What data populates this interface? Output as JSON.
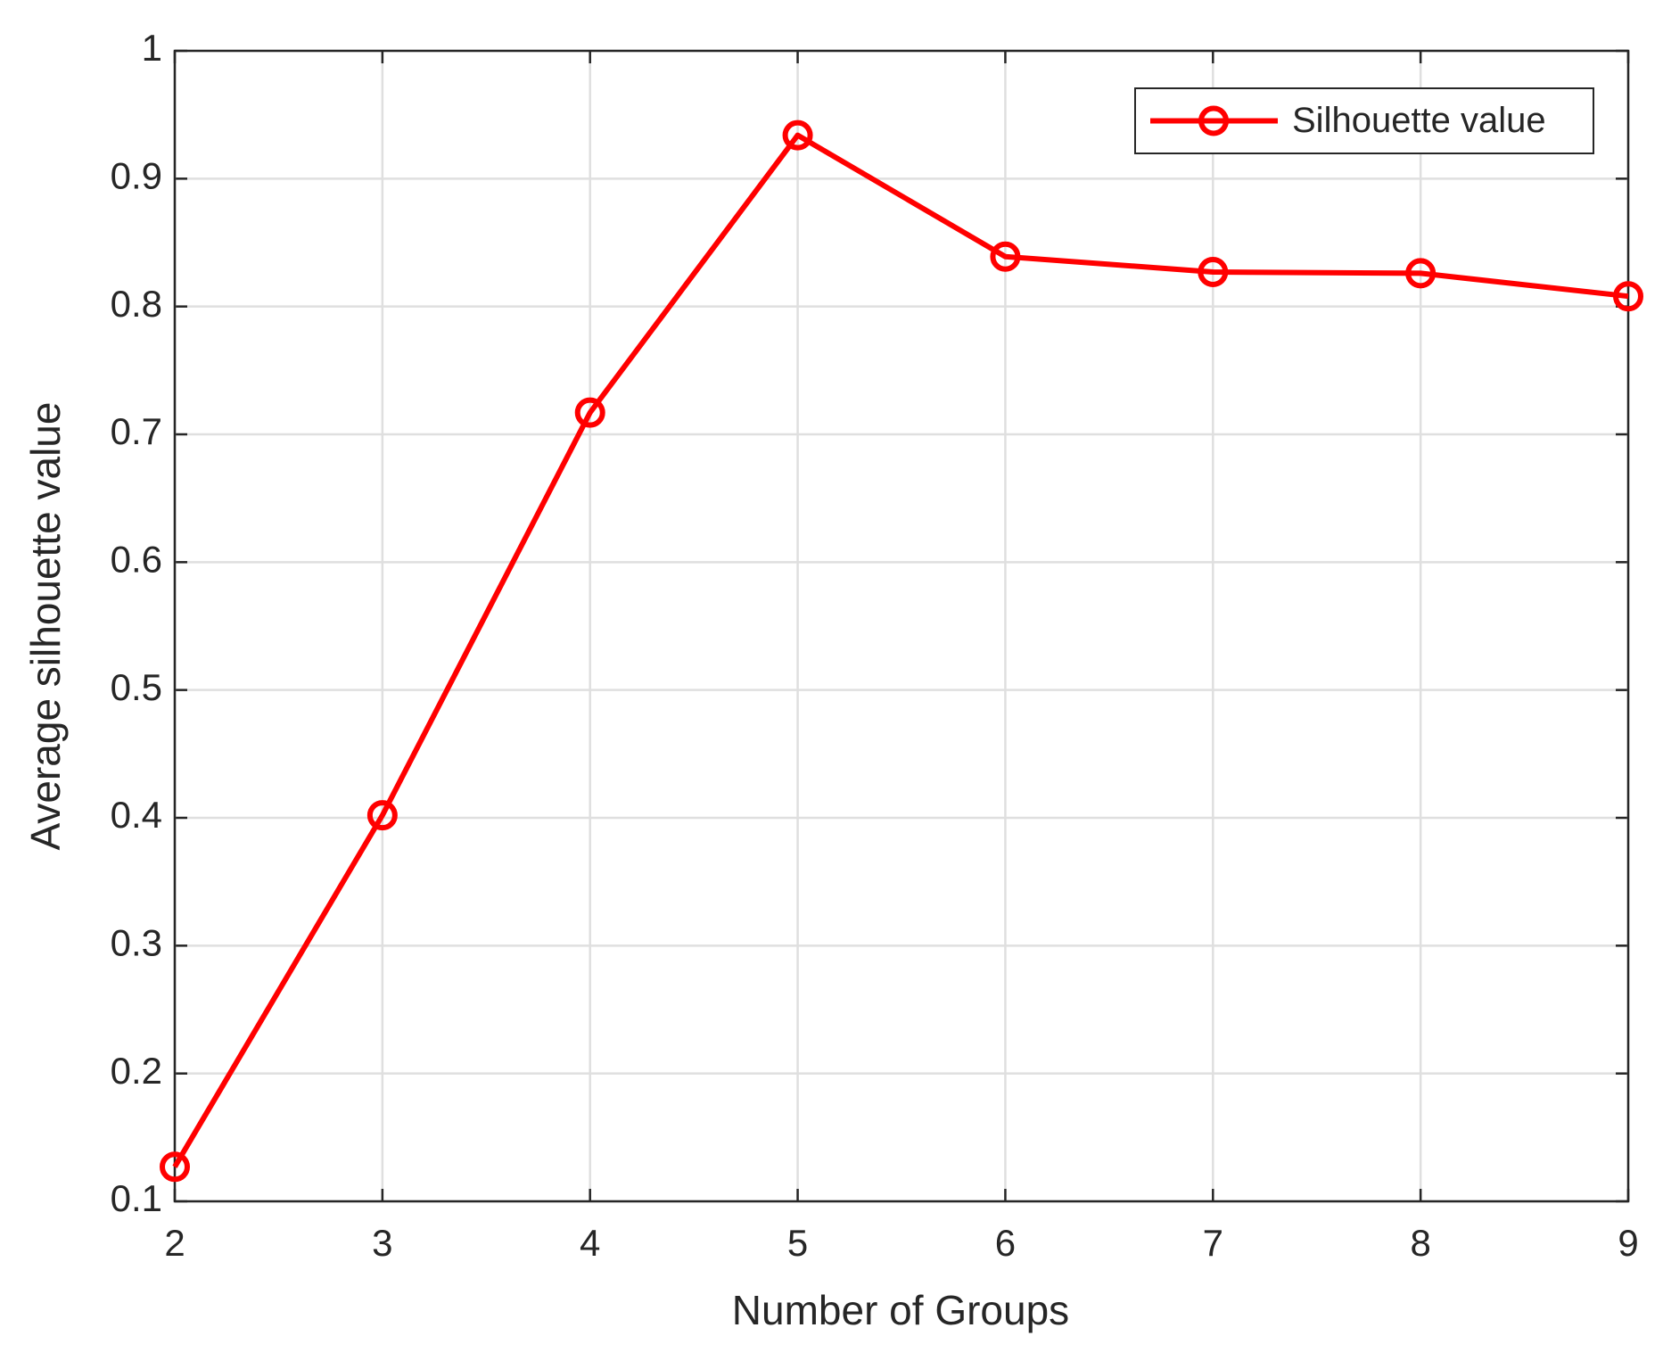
{
  "chart_data": {
    "type": "line",
    "xlabel": "Number of Groups",
    "ylabel": "Average silhouette value",
    "x": [
      2,
      3,
      4,
      5,
      6,
      7,
      8,
      9
    ],
    "series": [
      {
        "name": "Silhouette value",
        "color": "#ff0000",
        "values": [
          0.127,
          0.402,
          0.717,
          0.934,
          0.839,
          0.827,
          0.826,
          0.808
        ]
      }
    ],
    "xlim": [
      2,
      9
    ],
    "xticks": [
      2,
      3,
      4,
      5,
      6,
      7,
      8,
      9
    ],
    "ylim": [
      0.1,
      1
    ],
    "yticks": [
      0.1,
      0.2,
      0.3,
      0.4,
      0.5,
      0.6,
      0.7,
      0.8,
      0.9,
      1
    ],
    "grid": true,
    "legend": "top-right"
  }
}
